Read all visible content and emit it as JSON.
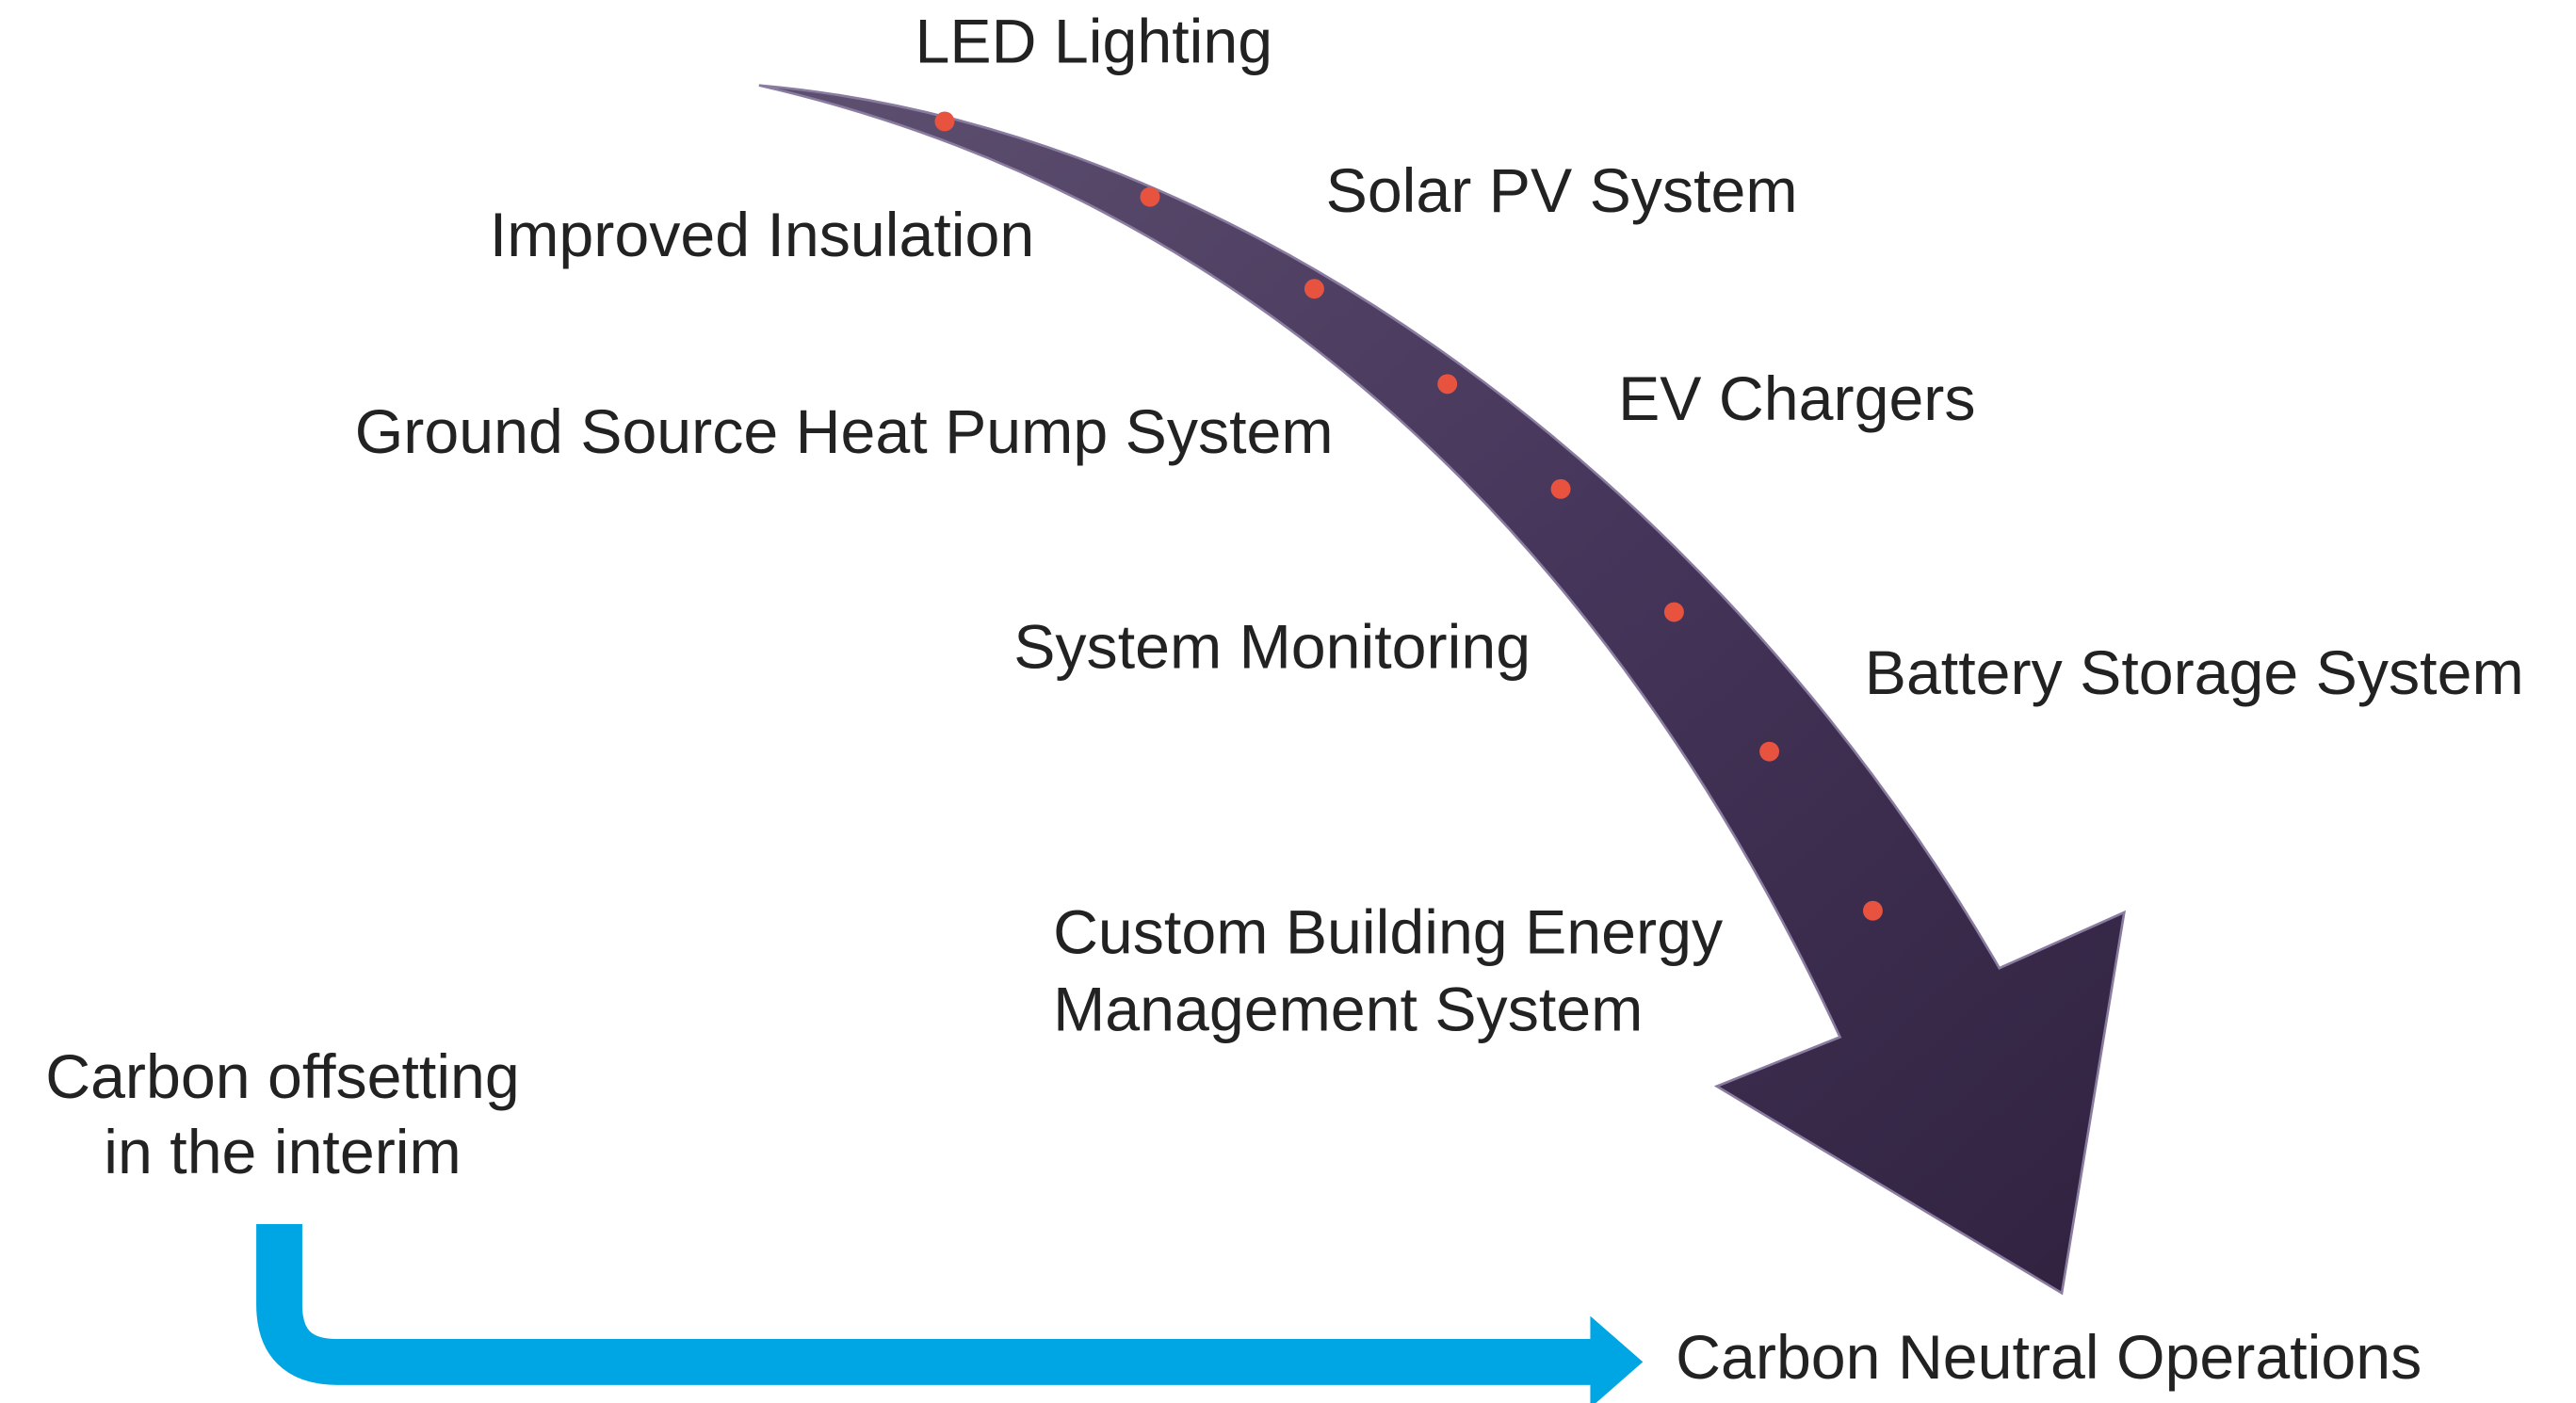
{
  "steps": [
    "LED Lighting",
    "Improved Insulation",
    "Solar PV System",
    "Ground Source Heat Pump System",
    "EV Chargers",
    "System Monitoring",
    "Battery Storage System",
    [
      "Custom Building Energy",
      "Management System"
    ]
  ],
  "offset": [
    "Carbon offsetting",
    "in the interim"
  ],
  "goal": "Carbon Neutral Operations"
}
